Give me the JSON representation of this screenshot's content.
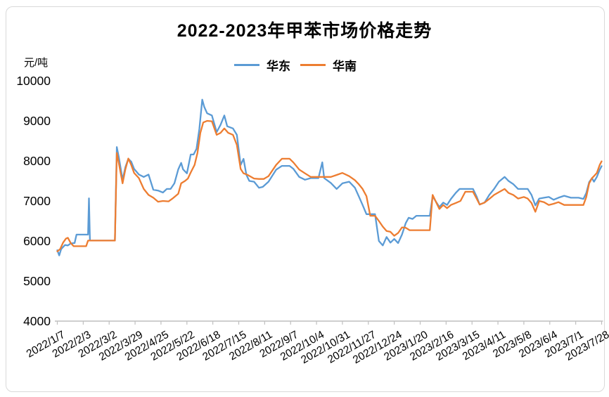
{
  "chart": {
    "title": "2022-2023年甲苯市场价格走势",
    "unit": "元/吨"
  },
  "chart_data": {
    "type": "line",
    "title": "2022-2023年甲苯市场价格走势",
    "ylabel": "元/吨",
    "ylim": [
      4000,
      10000
    ],
    "yticks": [
      10000,
      9000,
      8000,
      7000,
      6000,
      5000,
      4000
    ],
    "x_tick_labels": [
      "2022/1/7",
      "2022/2/3",
      "2022/3/2",
      "2022/3/29",
      "2022/4/25",
      "2022/5/22",
      "2022/6/18",
      "2022/7/15",
      "2022/8/11",
      "2022/9/7",
      "2022/10/4",
      "2022/10/31",
      "2022/11/27",
      "2022/12/24",
      "2023/1/20",
      "2023/2/16",
      "2023/3/15",
      "2023/4/11",
      "2023/5/8",
      "2023/6/4",
      "2023/7/1",
      "2023/7/28"
    ],
    "x_tick_interval_days": 27,
    "x_domain_days": [
      0,
      567
    ],
    "grid": false,
    "legend_position": "top-center",
    "series": [
      {
        "name": "华东",
        "color": "#5B9BD5",
        "points": [
          [
            0,
            5770
          ],
          [
            2,
            5640
          ],
          [
            4,
            5800
          ],
          [
            8,
            5900
          ],
          [
            11,
            5890
          ],
          [
            14,
            5940
          ],
          [
            18,
            5950
          ],
          [
            20,
            6160
          ],
          [
            30,
            6160
          ],
          [
            32,
            6160
          ],
          [
            33,
            7065
          ],
          [
            34,
            6010
          ],
          [
            45,
            6010
          ],
          [
            60,
            6010
          ],
          [
            62,
            8345
          ],
          [
            64,
            8100
          ],
          [
            68,
            7530
          ],
          [
            71,
            7850
          ],
          [
            74,
            8050
          ],
          [
            77,
            7980
          ],
          [
            80,
            7800
          ],
          [
            85,
            7660
          ],
          [
            90,
            7600
          ],
          [
            95,
            7660
          ],
          [
            100,
            7280
          ],
          [
            105,
            7260
          ],
          [
            110,
            7210
          ],
          [
            114,
            7300
          ],
          [
            118,
            7300
          ],
          [
            122,
            7440
          ],
          [
            126,
            7790
          ],
          [
            129,
            7950
          ],
          [
            131,
            7790
          ],
          [
            135,
            7690
          ],
          [
            139,
            8160
          ],
          [
            142,
            8160
          ],
          [
            145,
            8300
          ],
          [
            148,
            8800
          ],
          [
            151,
            9530
          ],
          [
            153,
            9350
          ],
          [
            156,
            9190
          ],
          [
            161,
            9135
          ],
          [
            166,
            8720
          ],
          [
            170,
            8900
          ],
          [
            174,
            9135
          ],
          [
            177,
            8865
          ],
          [
            183,
            8810
          ],
          [
            187,
            8650
          ],
          [
            191,
            7900
          ],
          [
            194,
            8050
          ],
          [
            197,
            7650
          ],
          [
            200,
            7500
          ],
          [
            205,
            7480
          ],
          [
            210,
            7330
          ],
          [
            214,
            7350
          ],
          [
            220,
            7480
          ],
          [
            228,
            7780
          ],
          [
            234,
            7875
          ],
          [
            242,
            7875
          ],
          [
            246,
            7800
          ],
          [
            252,
            7600
          ],
          [
            258,
            7530
          ],
          [
            264,
            7570
          ],
          [
            272,
            7570
          ],
          [
            276,
            7965
          ],
          [
            278,
            7570
          ],
          [
            285,
            7450
          ],
          [
            291,
            7300
          ],
          [
            297,
            7440
          ],
          [
            304,
            7480
          ],
          [
            310,
            7330
          ],
          [
            314,
            7120
          ],
          [
            318,
            6900
          ],
          [
            322,
            6670
          ],
          [
            331,
            6670
          ],
          [
            335,
            6000
          ],
          [
            339,
            5890
          ],
          [
            343,
            6100
          ],
          [
            347,
            5960
          ],
          [
            351,
            6050
          ],
          [
            355,
            5950
          ],
          [
            359,
            6160
          ],
          [
            363,
            6450
          ],
          [
            366,
            6580
          ],
          [
            370,
            6550
          ],
          [
            374,
            6630
          ],
          [
            388,
            6630
          ],
          [
            391,
            7120
          ],
          [
            394,
            7000
          ],
          [
            398,
            6850
          ],
          [
            402,
            6960
          ],
          [
            406,
            6900
          ],
          [
            410,
            7050
          ],
          [
            415,
            7200
          ],
          [
            419,
            7300
          ],
          [
            433,
            7300
          ],
          [
            437,
            7100
          ],
          [
            440,
            6910
          ],
          [
            445,
            6960
          ],
          [
            450,
            7150
          ],
          [
            455,
            7300
          ],
          [
            460,
            7480
          ],
          [
            466,
            7600
          ],
          [
            470,
            7500
          ],
          [
            475,
            7420
          ],
          [
            480,
            7300
          ],
          [
            486,
            7300
          ],
          [
            490,
            7300
          ],
          [
            494,
            7150
          ],
          [
            498,
            6890
          ],
          [
            502,
            7060
          ],
          [
            507,
            7080
          ],
          [
            512,
            7100
          ],
          [
            517,
            7030
          ],
          [
            522,
            7080
          ],
          [
            528,
            7130
          ],
          [
            535,
            7080
          ],
          [
            543,
            7080
          ],
          [
            548,
            7050
          ],
          [
            551,
            7200
          ],
          [
            554,
            7470
          ],
          [
            557,
            7570
          ],
          [
            559,
            7480
          ],
          [
            562,
            7600
          ],
          [
            565,
            7780
          ],
          [
            567,
            7870
          ]
        ]
      },
      {
        "name": "华南",
        "color": "#ED7D31",
        "points": [
          [
            0,
            5740
          ],
          [
            3,
            5800
          ],
          [
            6,
            5960
          ],
          [
            9,
            6060
          ],
          [
            11,
            6080
          ],
          [
            14,
            5950
          ],
          [
            17,
            5870
          ],
          [
            30,
            5870
          ],
          [
            32,
            6010
          ],
          [
            45,
            6010
          ],
          [
            60,
            6010
          ],
          [
            62,
            8200
          ],
          [
            64,
            7950
          ],
          [
            68,
            7440
          ],
          [
            71,
            7800
          ],
          [
            74,
            8060
          ],
          [
            77,
            7900
          ],
          [
            80,
            7700
          ],
          [
            85,
            7570
          ],
          [
            90,
            7300
          ],
          [
            95,
            7150
          ],
          [
            100,
            7080
          ],
          [
            105,
            6980
          ],
          [
            110,
            7000
          ],
          [
            116,
            6990
          ],
          [
            120,
            7060
          ],
          [
            126,
            7180
          ],
          [
            129,
            7440
          ],
          [
            133,
            7500
          ],
          [
            136,
            7560
          ],
          [
            139,
            7710
          ],
          [
            143,
            7900
          ],
          [
            146,
            8200
          ],
          [
            149,
            8700
          ],
          [
            152,
            8960
          ],
          [
            156,
            9000
          ],
          [
            161,
            8990
          ],
          [
            166,
            8650
          ],
          [
            170,
            8700
          ],
          [
            174,
            8810
          ],
          [
            178,
            8700
          ],
          [
            183,
            8650
          ],
          [
            187,
            8400
          ],
          [
            191,
            7800
          ],
          [
            194,
            7690
          ],
          [
            198,
            7655
          ],
          [
            205,
            7560
          ],
          [
            210,
            7550
          ],
          [
            215,
            7550
          ],
          [
            220,
            7620
          ],
          [
            228,
            7900
          ],
          [
            234,
            8055
          ],
          [
            242,
            8055
          ],
          [
            246,
            7960
          ],
          [
            252,
            7785
          ],
          [
            258,
            7690
          ],
          [
            264,
            7600
          ],
          [
            276,
            7600
          ],
          [
            285,
            7600
          ],
          [
            291,
            7650
          ],
          [
            297,
            7700
          ],
          [
            304,
            7620
          ],
          [
            310,
            7520
          ],
          [
            314,
            7420
          ],
          [
            318,
            7300
          ],
          [
            322,
            7120
          ],
          [
            326,
            6630
          ],
          [
            331,
            6630
          ],
          [
            335,
            6500
          ],
          [
            339,
            6360
          ],
          [
            343,
            6250
          ],
          [
            347,
            6230
          ],
          [
            351,
            6130
          ],
          [
            355,
            6200
          ],
          [
            359,
            6340
          ],
          [
            363,
            6330
          ],
          [
            367,
            6270
          ],
          [
            388,
            6270
          ],
          [
            391,
            7150
          ],
          [
            394,
            7000
          ],
          [
            398,
            6800
          ],
          [
            402,
            6900
          ],
          [
            406,
            6820
          ],
          [
            410,
            6900
          ],
          [
            415,
            6950
          ],
          [
            420,
            7000
          ],
          [
            425,
            7230
          ],
          [
            433,
            7230
          ],
          [
            437,
            7050
          ],
          [
            440,
            6910
          ],
          [
            445,
            6960
          ],
          [
            450,
            7050
          ],
          [
            455,
            7150
          ],
          [
            460,
            7220
          ],
          [
            466,
            7300
          ],
          [
            470,
            7200
          ],
          [
            475,
            7150
          ],
          [
            480,
            7060
          ],
          [
            486,
            7100
          ],
          [
            490,
            7060
          ],
          [
            494,
            6950
          ],
          [
            498,
            6730
          ],
          [
            502,
            7000
          ],
          [
            507,
            6970
          ],
          [
            512,
            6900
          ],
          [
            517,
            6930
          ],
          [
            522,
            6970
          ],
          [
            528,
            6900
          ],
          [
            543,
            6900
          ],
          [
            548,
            6900
          ],
          [
            551,
            7100
          ],
          [
            554,
            7440
          ],
          [
            557,
            7570
          ],
          [
            559,
            7620
          ],
          [
            562,
            7700
          ],
          [
            565,
            7900
          ],
          [
            567,
            7990
          ]
        ]
      }
    ]
  },
  "style": {
    "axis_color": "#bfbfbf",
    "text_color": "#000000"
  }
}
